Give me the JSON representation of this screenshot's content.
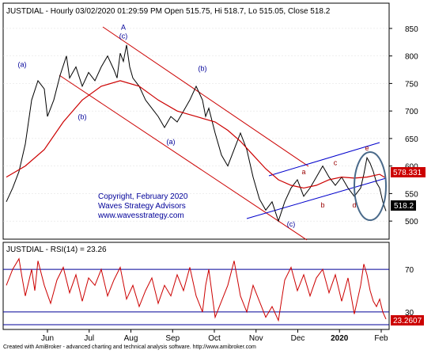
{
  "chart_data": [
    {
      "type": "line",
      "panel": "price",
      "header": "JUSTDIAL - Hourly 03/02/2020 01:29:59 PM Open 515.75, Hi 518.7, Lo 515.05, Close 518.2",
      "y_ticks": [
        500,
        550,
        600,
        650,
        700,
        750,
        800,
        850
      ],
      "ylim": [
        470,
        870
      ],
      "x_ticks": [
        "Jun",
        "Jul",
        "Aug",
        "Sep",
        "Oct",
        "Nov",
        "Dec",
        "2020",
        "Feb"
      ],
      "last_price": "518.2",
      "ma_value": "578.331",
      "series": [
        {
          "color": "#000000",
          "values": [
            [
              0,
              535
            ],
            [
              2,
              560
            ],
            [
              4,
              590
            ],
            [
              6,
              640
            ],
            [
              8,
              720
            ],
            [
              10,
              755
            ],
            [
              12,
              740
            ],
            [
              13,
              690
            ],
            [
              15,
              720
            ],
            [
              17,
              765
            ],
            [
              19,
              800
            ],
            [
              20,
              760
            ],
            [
              22,
              780
            ],
            [
              24,
              745
            ],
            [
              26,
              770
            ],
            [
              28,
              755
            ],
            [
              30,
              780
            ],
            [
              32,
              800
            ],
            [
              34,
              775
            ],
            [
              35,
              760
            ],
            [
              36,
              805
            ],
            [
              37,
              790
            ],
            [
              38,
              820
            ],
            [
              39,
              780
            ],
            [
              40,
              760
            ],
            [
              42,
              745
            ],
            [
              44,
              720
            ],
            [
              46,
              705
            ],
            [
              48,
              690
            ],
            [
              50,
              670
            ],
            [
              52,
              690
            ],
            [
              54,
              680
            ],
            [
              56,
              700
            ],
            [
              58,
              720
            ],
            [
              60,
              745
            ],
            [
              62,
              720
            ],
            [
              63,
              690
            ],
            [
              64,
              705
            ],
            [
              66,
              660
            ],
            [
              68,
              620
            ],
            [
              70,
              600
            ],
            [
              72,
              630
            ],
            [
              74,
              660
            ],
            [
              76,
              630
            ],
            [
              78,
              580
            ],
            [
              80,
              540
            ],
            [
              82,
              520
            ],
            [
              84,
              535
            ],
            [
              86,
              500
            ],
            [
              88,
              535
            ],
            [
              90,
              560
            ],
            [
              92,
              575
            ],
            [
              94,
              545
            ],
            [
              96,
              560
            ],
            [
              98,
              580
            ],
            [
              100,
              600
            ],
            [
              102,
              580
            ],
            [
              104,
              565
            ],
            [
              106,
              580
            ],
            [
              108,
              560
            ],
            [
              110,
              545
            ],
            [
              112,
              560
            ],
            [
              113,
              585
            ],
            [
              114,
              615
            ],
            [
              115,
              605
            ],
            [
              116,
              590
            ],
            [
              117,
              570
            ],
            [
              118,
              560
            ],
            [
              119,
              535
            ],
            [
              120,
              518.2
            ]
          ]
        },
        {
          "color": "#cc0000",
          "values": [
            [
              0,
              580
            ],
            [
              6,
              600
            ],
            [
              12,
              630
            ],
            [
              18,
              680
            ],
            [
              24,
              720
            ],
            [
              30,
              745
            ],
            [
              36,
              755
            ],
            [
              42,
              745
            ],
            [
              48,
              720
            ],
            [
              54,
              700
            ],
            [
              60,
              690
            ],
            [
              66,
              680
            ],
            [
              70,
              665
            ],
            [
              74,
              645
            ],
            [
              78,
              620
            ],
            [
              82,
              595
            ],
            [
              86,
              575
            ],
            [
              90,
              565
            ],
            [
              94,
              560
            ],
            [
              98,
              565
            ],
            [
              102,
              575
            ],
            [
              106,
              580
            ],
            [
              110,
              578
            ],
            [
              114,
              580
            ],
            [
              118,
              585
            ],
            [
              120,
              578
            ]
          ]
        }
      ],
      "annotations": [
        {
          "label": "A",
          "x": 37,
          "y": 848,
          "color": "#000099"
        },
        {
          "label": "(c)",
          "x": 37,
          "y": 832,
          "color": "#000099"
        },
        {
          "label": "(a)",
          "x": 5,
          "y": 780,
          "color": "#000099"
        },
        {
          "label": "(b)",
          "x": 24,
          "y": 685,
          "color": "#000099"
        },
        {
          "label": "(b)",
          "x": 62,
          "y": 773,
          "color": "#000099"
        },
        {
          "label": "(a)",
          "x": 52,
          "y": 640,
          "color": "#000099"
        },
        {
          "label": "(c)",
          "x": 90,
          "y": 490,
          "color": "#000099"
        },
        {
          "label": "a",
          "x": 94,
          "y": 585,
          "color": "#990000"
        },
        {
          "label": "b",
          "x": 100,
          "y": 525,
          "color": "#990000"
        },
        {
          "label": "c",
          "x": 104,
          "y": 602,
          "color": "#990000"
        },
        {
          "label": "d",
          "x": 110,
          "y": 525,
          "color": "#990000"
        },
        {
          "label": "e",
          "x": 114,
          "y": 628,
          "color": "#990000"
        }
      ],
      "copyright": [
        "Copyright, February 2020",
        "Waves Strategy Advisors",
        "www.wavesstrategy.com"
      ]
    },
    {
      "type": "line",
      "panel": "rsi",
      "header": "JUSTDIAL - RSI(14) = 23.26",
      "y_ticks": [
        30,
        70
      ],
      "ylim": [
        15,
        85
      ],
      "last_value": "23.2607",
      "series": [
        {
          "color": "#cc0000",
          "values": [
            [
              0,
              55
            ],
            [
              2,
              70
            ],
            [
              4,
              80
            ],
            [
              5,
              62
            ],
            [
              6,
              45
            ],
            [
              8,
              70
            ],
            [
              9,
              50
            ],
            [
              10,
              78
            ],
            [
              12,
              55
            ],
            [
              14,
              38
            ],
            [
              16,
              60
            ],
            [
              18,
              72
            ],
            [
              20,
              48
            ],
            [
              22,
              65
            ],
            [
              24,
              40
            ],
            [
              26,
              62
            ],
            [
              28,
              55
            ],
            [
              30,
              70
            ],
            [
              32,
              45
            ],
            [
              34,
              60
            ],
            [
              36,
              72
            ],
            [
              38,
              42
            ],
            [
              40,
              55
            ],
            [
              42,
              35
            ],
            [
              44,
              50
            ],
            [
              46,
              62
            ],
            [
              48,
              38
            ],
            [
              50,
              55
            ],
            [
              52,
              45
            ],
            [
              54,
              65
            ],
            [
              56,
              50
            ],
            [
              58,
              72
            ],
            [
              60,
              45
            ],
            [
              62,
              30
            ],
            [
              63,
              55
            ],
            [
              64,
              70
            ],
            [
              66,
              25
            ],
            [
              68,
              40
            ],
            [
              70,
              55
            ],
            [
              72,
              78
            ],
            [
              74,
              45
            ],
            [
              76,
              30
            ],
            [
              78,
              55
            ],
            [
              80,
              40
            ],
            [
              82,
              25
            ],
            [
              84,
              35
            ],
            [
              86,
              22
            ],
            [
              88,
              60
            ],
            [
              90,
              72
            ],
            [
              92,
              50
            ],
            [
              94,
              65
            ],
            [
              96,
              45
            ],
            [
              98,
              62
            ],
            [
              100,
              70
            ],
            [
              102,
              48
            ],
            [
              104,
              65
            ],
            [
              106,
              40
            ],
            [
              108,
              62
            ],
            [
              110,
              28
            ],
            [
              112,
              55
            ],
            [
              113,
              75
            ],
            [
              114,
              65
            ],
            [
              115,
              50
            ],
            [
              116,
              40
            ],
            [
              117,
              35
            ],
            [
              118,
              42
            ],
            [
              119,
              30
            ],
            [
              120,
              23.26
            ]
          ]
        }
      ]
    }
  ],
  "footer": "Created with AmiBroker - advanced charting and technical analysis software. http://www.amibroker.com"
}
